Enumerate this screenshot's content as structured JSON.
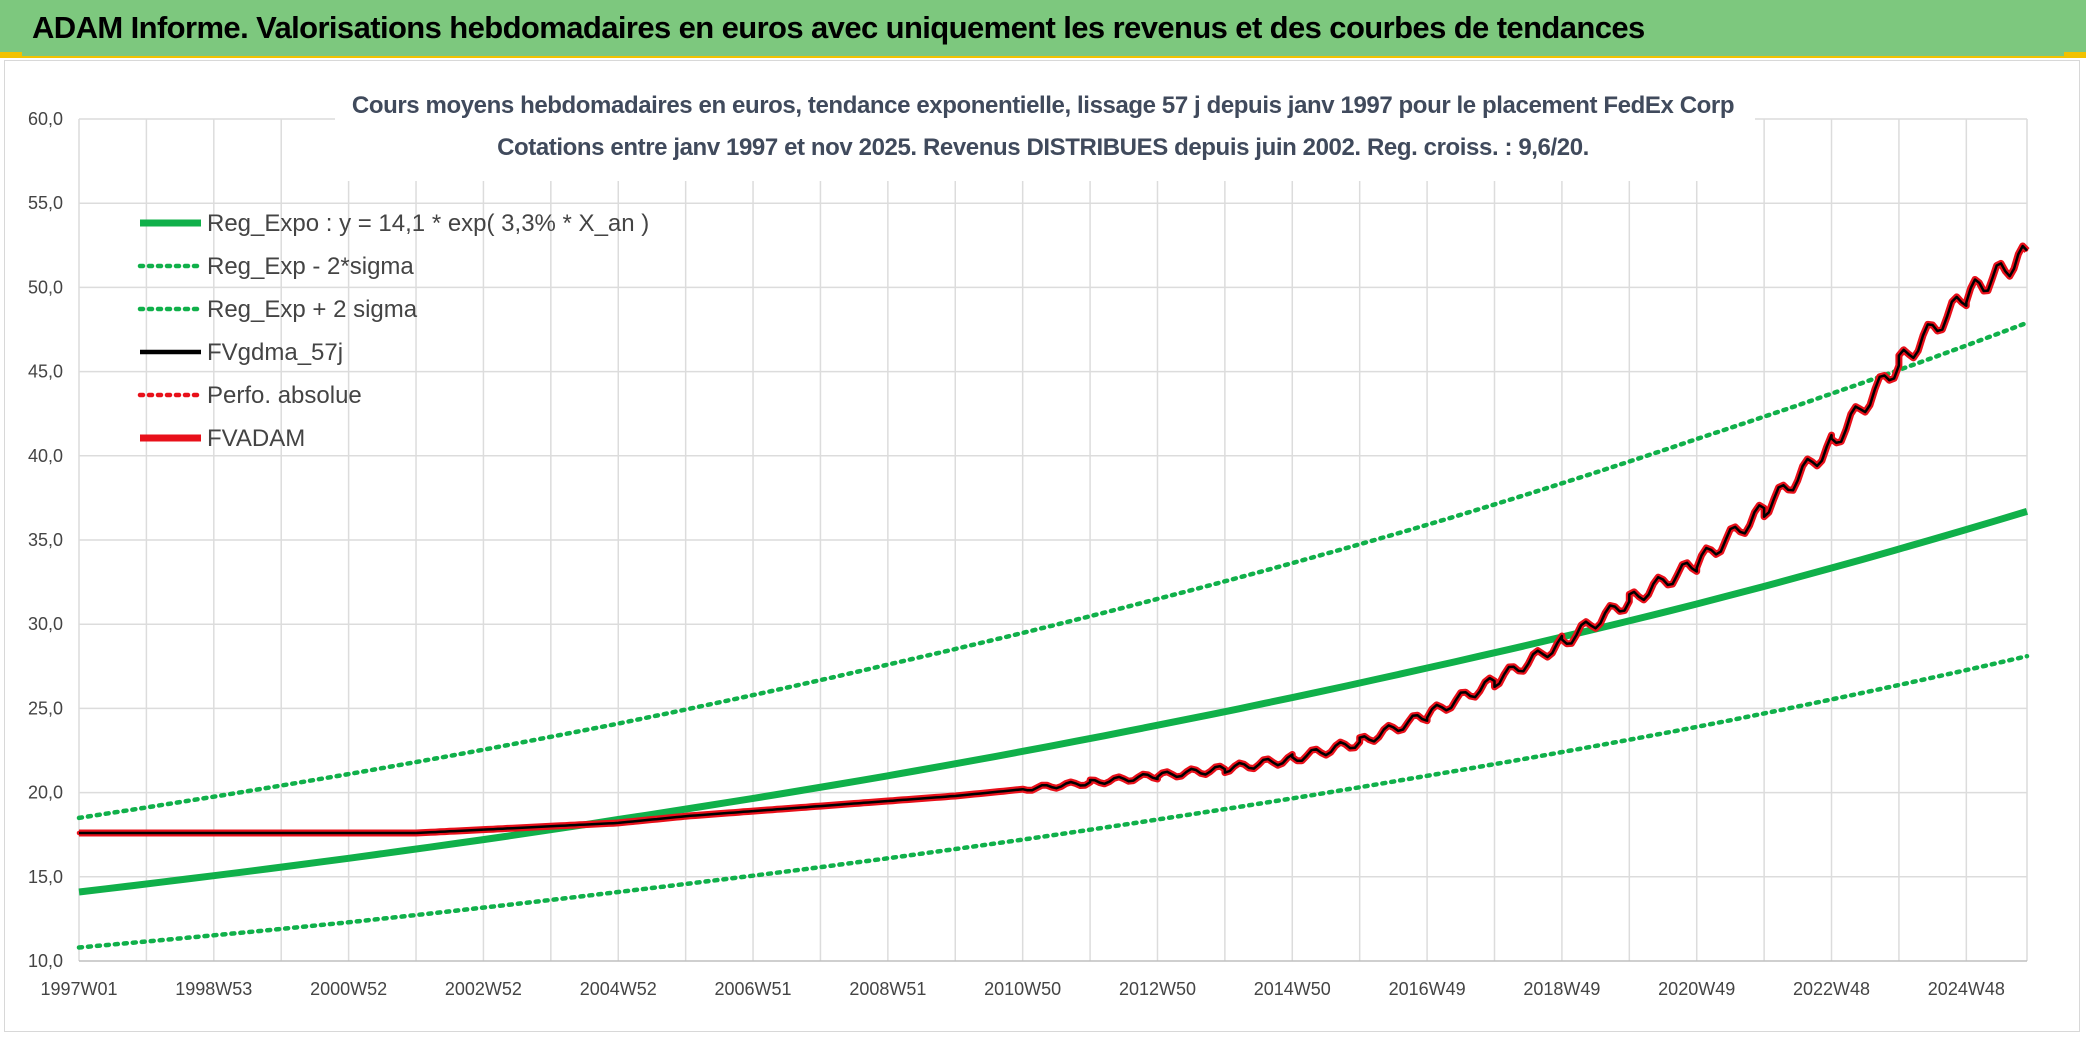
{
  "header": {
    "title": "ADAM Informe. Valorisations hebdomadaires en euros avec uniquement les revenus et des courbes de tendances"
  },
  "colors": {
    "banner": "#7dc87e",
    "accent": "#f2c200",
    "reg_green": "#10b04a",
    "black": "#000000",
    "red": "#e8101a",
    "grid": "#dcdcdc"
  },
  "chart_data": {
    "type": "line",
    "title": [
      "Cours moyens hebdomadaires en euros, tendance exponentielle, lissage 57 j depuis janv 1997 pour le placement FedEx Corp",
      "Cotations entre janv 1997 et nov 2025. Revenus DISTRIBUES depuis juin 2002. Reg. croiss. : 9,6/20."
    ],
    "xlabel": "",
    "ylabel": "",
    "ylim": [
      10,
      60
    ],
    "y_ticks": [
      "10,0",
      "15,0",
      "20,0",
      "25,0",
      "30,0",
      "35,0",
      "40,0",
      "45,0",
      "50,0",
      "55,0",
      "60,0"
    ],
    "x_range_years": [
      1997.0,
      2025.9
    ],
    "x_tick_labels": [
      "1997W01",
      "1998W53",
      "2000W52",
      "2002W52",
      "2004W52",
      "2006W51",
      "2008W51",
      "2010W50",
      "2012W50",
      "2014W50",
      "2016W49",
      "2018W49",
      "2020W49",
      "2022W48",
      "2024W48"
    ],
    "x_tick_years": [
      1997.0,
      1999.0,
      2001.0,
      2003.0,
      2005.0,
      2007.0,
      2009.0,
      2011.0,
      2013.0,
      2015.0,
      2017.0,
      2019.0,
      2021.0,
      2023.0,
      2025.0
    ],
    "grid": true,
    "legend_position": "top-left",
    "series": [
      {
        "name": "Reg_Expo : y = 14,1 * exp( 3,3% *  X_an )",
        "style": "solid-thick",
        "color": "#10b04a",
        "x": [
          1997.0,
          2001.0,
          2005.0,
          2009.0,
          2013.0,
          2017.0,
          2021.0,
          2025.9
        ],
        "y": [
          14.1,
          16.1,
          18.4,
          21.0,
          24.0,
          27.4,
          31.2,
          36.7
        ]
      },
      {
        "name": "Reg_Exp - 2*sigma",
        "style": "dotted",
        "color": "#10b04a",
        "x": [
          1997.0,
          2001.0,
          2005.0,
          2009.0,
          2013.0,
          2017.0,
          2021.0,
          2025.9
        ],
        "y": [
          10.8,
          12.3,
          14.1,
          16.1,
          18.4,
          21.0,
          23.9,
          28.1
        ]
      },
      {
        "name": "Reg_Exp + 2 sigma",
        "style": "dotted",
        "color": "#10b04a",
        "x": [
          1997.0,
          2001.0,
          2005.0,
          2009.0,
          2013.0,
          2017.0,
          2021.0,
          2025.9
        ],
        "y": [
          18.5,
          21.1,
          24.1,
          27.6,
          31.5,
          35.9,
          41.0,
          47.9
        ]
      },
      {
        "name": "FVgdma_57j",
        "style": "solid",
        "color": "#000000",
        "x": [
          1997.0,
          2002.0,
          2003.0,
          2004.0,
          2005.0,
          2006.0,
          2007.0,
          2008.0,
          2009.0,
          2010.0,
          2011.0,
          2012.0,
          2013.0,
          2014.0,
          2015.0,
          2016.0,
          2017.0,
          2018.0,
          2019.0,
          2020.0,
          2021.0,
          2022.0,
          2023.0,
          2024.0,
          2025.0,
          2025.9
        ],
        "y": [
          17.6,
          17.6,
          17.8,
          18.0,
          18.2,
          18.6,
          18.9,
          19.2,
          19.5,
          19.8,
          20.2,
          20.6,
          21.0,
          21.4,
          22.0,
          23.0,
          24.6,
          26.6,
          28.9,
          31.4,
          33.6,
          36.8,
          40.7,
          45.5,
          49.5,
          52.0
        ]
      },
      {
        "name": "Perfo. absolue",
        "style": "dotted",
        "color": "#e8101a",
        "x": [
          1997.0,
          2002.0,
          2003.0,
          2004.0,
          2005.0,
          2006.0,
          2007.0,
          2008.0,
          2009.0,
          2010.0,
          2011.0,
          2012.0,
          2013.0,
          2014.0,
          2015.0,
          2016.0,
          2017.0,
          2018.0,
          2019.0,
          2020.0,
          2021.0,
          2022.0,
          2023.0,
          2024.0,
          2025.0,
          2025.9
        ],
        "y": [
          17.6,
          17.6,
          17.8,
          18.0,
          18.2,
          18.6,
          18.9,
          19.2,
          19.5,
          19.8,
          20.2,
          20.6,
          21.0,
          21.4,
          22.0,
          23.0,
          24.6,
          26.6,
          28.9,
          31.4,
          33.6,
          36.8,
          40.7,
          45.5,
          49.5,
          52.0
        ]
      },
      {
        "name": "FVADAM",
        "style": "solid-thick",
        "color": "#e8101a",
        "x": [
          1997.0,
          2002.0,
          2003.0,
          2004.0,
          2005.0,
          2006.0,
          2007.0,
          2008.0,
          2009.0,
          2010.0,
          2011.0,
          2012.0,
          2013.0,
          2014.0,
          2015.0,
          2016.0,
          2017.0,
          2018.0,
          2019.0,
          2020.0,
          2021.0,
          2022.0,
          2023.0,
          2024.0,
          2025.0,
          2025.9
        ],
        "y": [
          17.6,
          17.6,
          17.8,
          18.0,
          18.2,
          18.6,
          18.9,
          19.2,
          19.5,
          19.8,
          20.2,
          20.6,
          21.0,
          21.4,
          22.0,
          23.0,
          24.6,
          26.6,
          28.9,
          31.4,
          33.6,
          36.8,
          40.7,
          45.5,
          49.5,
          52.0
        ]
      }
    ]
  }
}
